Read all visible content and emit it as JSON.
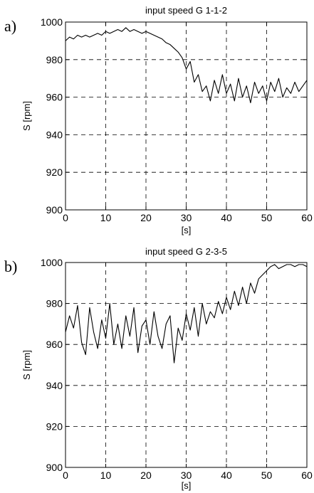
{
  "chart_data": [
    {
      "type": "line",
      "panel_label": "a)",
      "title": "input speed G 1-1-2",
      "xlabel": "[s]",
      "ylabel": "S [rpm]",
      "xlim": [
        0,
        60
      ],
      "ylim": [
        900,
        1000
      ],
      "xticks": [
        0,
        10,
        20,
        30,
        40,
        50,
        60
      ],
      "yticks": [
        900,
        920,
        940,
        960,
        980,
        1000
      ],
      "grid": true,
      "series": [
        {
          "color": "#000000",
          "x": [
            0,
            1,
            2,
            3,
            4,
            5,
            6,
            7,
            8,
            9,
            10,
            11,
            12,
            13,
            14,
            15,
            16,
            17,
            18,
            19,
            20,
            21,
            22,
            23,
            24,
            25,
            26,
            27,
            28,
            29,
            30,
            31,
            32,
            33,
            34,
            35,
            36,
            37,
            38,
            39,
            40,
            41,
            42,
            43,
            44,
            45,
            46,
            47,
            48,
            49,
            50,
            51,
            52,
            53,
            54,
            55,
            56,
            57,
            58,
            59,
            60
          ],
          "y": [
            990,
            992,
            991,
            993,
            992,
            993,
            992,
            993,
            994,
            993,
            995,
            994,
            995,
            996,
            995,
            997,
            995,
            996,
            995,
            994,
            995,
            994,
            993,
            992,
            991,
            989,
            988,
            986,
            984,
            981,
            975,
            979,
            968,
            972,
            963,
            966,
            958,
            969,
            962,
            972,
            962,
            967,
            958,
            970,
            960,
            966,
            957,
            968,
            962,
            966,
            958,
            968,
            963,
            970,
            960,
            965,
            962,
            968,
            963,
            966,
            969
          ]
        }
      ]
    },
    {
      "type": "line",
      "panel_label": "b)",
      "title": "input speed G 2-3-5",
      "xlabel": "[s]",
      "ylabel": "S [rpm]",
      "xlim": [
        0,
        60
      ],
      "ylim": [
        900,
        1000
      ],
      "xticks": [
        0,
        10,
        20,
        30,
        40,
        50,
        60
      ],
      "yticks": [
        900,
        920,
        940,
        960,
        980,
        1000
      ],
      "grid": true,
      "series": [
        {
          "color": "#000000",
          "x": [
            0,
            1,
            2,
            3,
            4,
            5,
            6,
            7,
            8,
            9,
            10,
            11,
            12,
            13,
            14,
            15,
            16,
            17,
            18,
            19,
            20,
            21,
            22,
            23,
            24,
            25,
            26,
            27,
            28,
            29,
            30,
            31,
            32,
            33,
            34,
            35,
            36,
            37,
            38,
            39,
            40,
            41,
            42,
            43,
            44,
            45,
            46,
            47,
            48,
            49,
            50,
            51,
            52,
            53,
            54,
            55,
            56,
            57,
            58,
            59,
            60
          ],
          "y": [
            966,
            974,
            968,
            979,
            961,
            955,
            978,
            966,
            958,
            972,
            963,
            980,
            960,
            970,
            958,
            974,
            964,
            978,
            956,
            969,
            972,
            960,
            976,
            964,
            958,
            970,
            974,
            951,
            968,
            962,
            975,
            967,
            978,
            964,
            980,
            970,
            976,
            973,
            981,
            975,
            983,
            977,
            986,
            979,
            988,
            980,
            990,
            985,
            992,
            994,
            996,
            998,
            999,
            997,
            998,
            999,
            999,
            998,
            999,
            999,
            998
          ]
        }
      ]
    }
  ]
}
